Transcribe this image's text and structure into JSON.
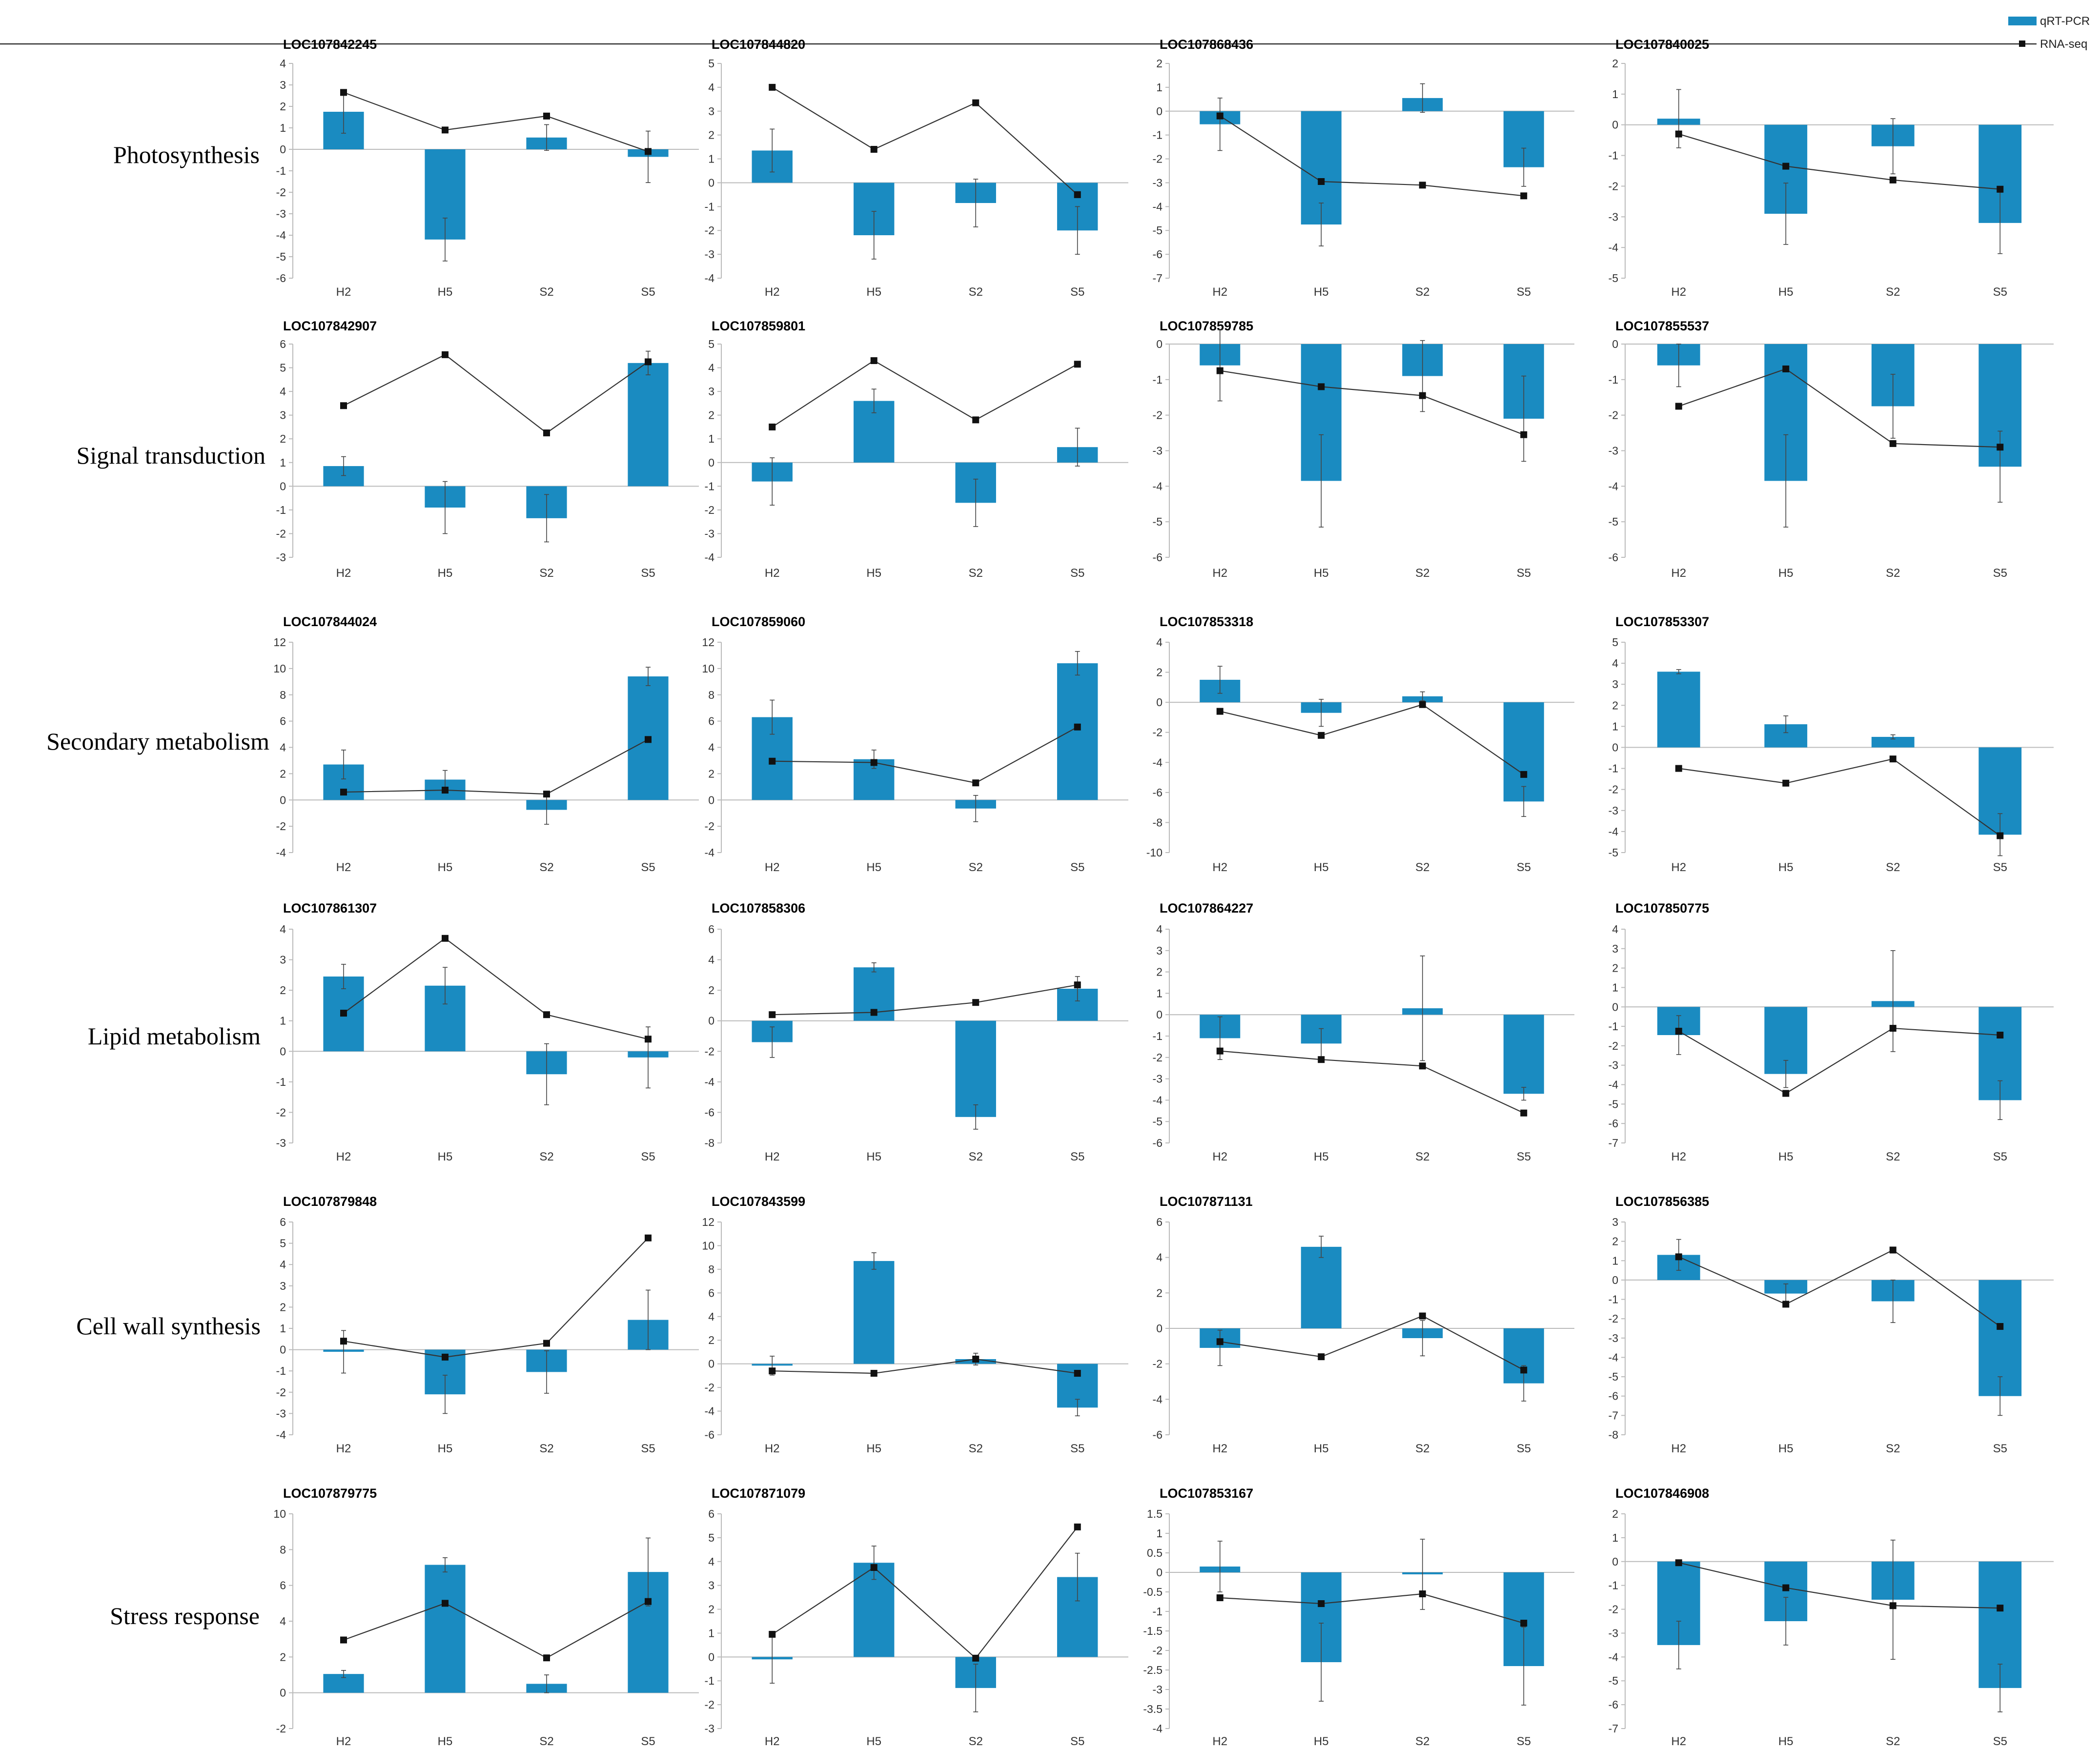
{
  "legend": {
    "bar_label": "qRT-PCR",
    "line_label": "RNA-seq"
  },
  "colors": {
    "bar": "#1A8BC1",
    "line": "#333333",
    "marker": "#111111",
    "axis": "#BBBBBB"
  },
  "row_labels": [
    "Photosynthesis",
    "Signal transduction",
    "Secondary metabolism",
    "Lipid metabolism",
    "Cell wall synthesis",
    "Stress response"
  ],
  "chart_data": [
    {
      "type": "bar",
      "title": "LOC107842245",
      "categories": [
        "H2",
        "H5",
        "S2",
        "S5"
      ],
      "ylim": [
        -6,
        4
      ],
      "yticks": [
        -6,
        -5,
        -4,
        -3,
        -2,
        -1,
        0,
        1,
        2,
        3,
        4
      ],
      "series": [
        {
          "name": "qRT-PCR",
          "values": [
            1.75,
            -4.2,
            0.55,
            -0.35
          ],
          "errors": [
            1.0,
            1.0,
            0.6,
            1.2
          ]
        },
        {
          "name": "RNA-seq",
          "type": "line",
          "values": [
            2.65,
            0.9,
            1.55,
            -0.1
          ]
        }
      ]
    },
    {
      "type": "bar",
      "title": "LOC107844820",
      "categories": [
        "H2",
        "H5",
        "S2",
        "S5"
      ],
      "ylim": [
        -4,
        5
      ],
      "yticks": [
        -4,
        -3,
        -2,
        -1,
        0,
        1,
        2,
        3,
        4,
        5
      ],
      "series": [
        {
          "name": "qRT-PCR",
          "values": [
            1.35,
            -2.2,
            -0.85,
            -2.0
          ],
          "errors": [
            0.9,
            1.0,
            1.0,
            1.0
          ]
        },
        {
          "name": "RNA-seq",
          "type": "line",
          "values": [
            4.0,
            1.4,
            3.35,
            -0.5
          ]
        }
      ]
    },
    {
      "type": "bar",
      "title": "LOC107868436",
      "categories": [
        "H2",
        "H5",
        "S2",
        "S5"
      ],
      "ylim": [
        -7,
        2
      ],
      "yticks": [
        -7,
        -6,
        -5,
        -4,
        -3,
        -2,
        -1,
        0,
        1,
        2
      ],
      "series": [
        {
          "name": "qRT-PCR",
          "values": [
            -0.55,
            -4.75,
            0.55,
            -2.35
          ],
          "errors": [
            1.1,
            0.9,
            0.6,
            0.8
          ]
        },
        {
          "name": "RNA-seq",
          "type": "line",
          "values": [
            -0.2,
            -2.95,
            -3.1,
            -3.55
          ]
        }
      ]
    },
    {
      "type": "bar",
      "title": "LOC107840025",
      "categories": [
        "H2",
        "H5",
        "S2",
        "S5"
      ],
      "ylim": [
        -5,
        2
      ],
      "yticks": [
        -5,
        -4,
        -3,
        -2,
        -1,
        0,
        1,
        2
      ],
      "series": [
        {
          "name": "qRT-PCR",
          "values": [
            0.2,
            -2.9,
            -0.7,
            -3.2
          ],
          "errors": [
            0.95,
            1.0,
            0.9,
            1.0
          ]
        },
        {
          "name": "RNA-seq",
          "type": "line",
          "values": [
            -0.3,
            -1.35,
            -1.8,
            -2.1
          ]
        }
      ]
    },
    {
      "type": "bar",
      "title": "LOC107842907",
      "categories": [
        "H2",
        "H5",
        "S2",
        "S5"
      ],
      "ylim": [
        -3,
        6
      ],
      "yticks": [
        -3,
        -2,
        -1,
        0,
        1,
        2,
        3,
        4,
        5,
        6
      ],
      "series": [
        {
          "name": "qRT-PCR",
          "values": [
            0.85,
            -0.9,
            -1.35,
            5.2
          ],
          "errors": [
            0.4,
            1.1,
            1.0,
            0.5
          ]
        },
        {
          "name": "RNA-seq",
          "type": "line",
          "values": [
            3.4,
            5.55,
            2.25,
            5.25
          ]
        }
      ]
    },
    {
      "type": "bar",
      "title": "LOC107859801",
      "categories": [
        "H2",
        "H5",
        "S2",
        "S5"
      ],
      "ylim": [
        -4,
        5
      ],
      "yticks": [
        -4,
        -3,
        -2,
        -1,
        0,
        1,
        2,
        3,
        4,
        5
      ],
      "series": [
        {
          "name": "qRT-PCR",
          "values": [
            -0.8,
            2.6,
            -1.7,
            0.65
          ],
          "errors": [
            1.0,
            0.5,
            1.0,
            0.8
          ]
        },
        {
          "name": "RNA-seq",
          "type": "line",
          "values": [
            1.5,
            4.3,
            1.8,
            4.15
          ]
        }
      ]
    },
    {
      "type": "bar",
      "title": "LOC107859785",
      "categories": [
        "H2",
        "H5",
        "S2",
        "S5"
      ],
      "ylim": [
        -6,
        0
      ],
      "yticks": [
        -6,
        -5,
        -4,
        -3,
        -2,
        -1,
        0
      ],
      "series": [
        {
          "name": "qRT-PCR",
          "values": [
            -0.6,
            -3.85,
            -0.9,
            -2.1
          ],
          "errors": [
            1.0,
            1.3,
            1.0,
            1.2
          ]
        },
        {
          "name": "RNA-seq",
          "type": "line",
          "values": [
            -0.75,
            -1.2,
            -1.45,
            -2.55
          ]
        }
      ]
    },
    {
      "type": "bar",
      "title": "LOC107855537",
      "categories": [
        "H2",
        "H5",
        "S2",
        "S5"
      ],
      "ylim": [
        -6,
        0
      ],
      "yticks": [
        -6,
        -5,
        -4,
        -3,
        -2,
        -1,
        0
      ],
      "series": [
        {
          "name": "qRT-PCR",
          "values": [
            -0.6,
            -3.85,
            -1.75,
            -3.45
          ],
          "errors": [
            0.6,
            1.3,
            0.9,
            1.0
          ]
        },
        {
          "name": "RNA-seq",
          "type": "line",
          "values": [
            -1.75,
            -0.7,
            -2.8,
            -2.9
          ]
        }
      ]
    },
    {
      "type": "bar",
      "title": "LOC107844024",
      "categories": [
        "H2",
        "H5",
        "S2",
        "S5"
      ],
      "ylim": [
        -4,
        12
      ],
      "yticks": [
        -4,
        -2,
        0,
        2,
        4,
        6,
        8,
        10,
        12
      ],
      "series": [
        {
          "name": "qRT-PCR",
          "values": [
            2.7,
            1.55,
            -0.75,
            9.4
          ],
          "errors": [
            1.1,
            0.7,
            1.1,
            0.7
          ]
        },
        {
          "name": "RNA-seq",
          "type": "line",
          "values": [
            0.6,
            0.75,
            0.45,
            4.6
          ]
        }
      ]
    },
    {
      "type": "bar",
      "title": "LOC107859060",
      "categories": [
        "H2",
        "H5",
        "S2",
        "S5"
      ],
      "ylim": [
        -4,
        12
      ],
      "yticks": [
        -4,
        -2,
        0,
        2,
        4,
        6,
        8,
        10,
        12
      ],
      "series": [
        {
          "name": "qRT-PCR",
          "values": [
            6.3,
            3.1,
            -0.65,
            10.4
          ],
          "errors": [
            1.3,
            0.7,
            1.0,
            0.9
          ]
        },
        {
          "name": "RNA-seq",
          "type": "line",
          "values": [
            2.95,
            2.85,
            1.3,
            5.55
          ]
        }
      ]
    },
    {
      "type": "bar",
      "title": "LOC107853318",
      "categories": [
        "H2",
        "H5",
        "S2",
        "S5"
      ],
      "ylim": [
        -10,
        4
      ],
      "yticks": [
        -10,
        -8,
        -6,
        -4,
        -2,
        0,
        2,
        4
      ],
      "series": [
        {
          "name": "qRT-PCR",
          "values": [
            1.5,
            -0.7,
            0.4,
            -6.6
          ],
          "errors": [
            0.9,
            0.9,
            0.3,
            1.0
          ]
        },
        {
          "name": "RNA-seq",
          "type": "line",
          "values": [
            -0.6,
            -2.2,
            -0.15,
            -4.8
          ]
        }
      ]
    },
    {
      "type": "bar",
      "title": "LOC107853307",
      "categories": [
        "H2",
        "H5",
        "S2",
        "S5"
      ],
      "ylim": [
        -5,
        5
      ],
      "yticks": [
        -5,
        -4,
        -3,
        -2,
        -1,
        0,
        1,
        2,
        3,
        4,
        5
      ],
      "series": [
        {
          "name": "qRT-PCR",
          "values": [
            3.6,
            1.1,
            0.5,
            -4.15
          ],
          "errors": [
            0.1,
            0.4,
            0.1,
            1.0
          ]
        },
        {
          "name": "RNA-seq",
          "type": "line",
          "values": [
            -1.0,
            -1.7,
            -0.55,
            -4.2
          ]
        }
      ]
    },
    {
      "type": "bar",
      "title": "LOC107861307",
      "categories": [
        "H2",
        "H5",
        "S2",
        "S5"
      ],
      "ylim": [
        -3,
        4
      ],
      "yticks": [
        -3,
        -2,
        -1,
        0,
        1,
        2,
        3,
        4
      ],
      "series": [
        {
          "name": "qRT-PCR",
          "values": [
            2.45,
            2.15,
            -0.75,
            -0.2
          ],
          "errors": [
            0.4,
            0.6,
            1.0,
            1.0
          ]
        },
        {
          "name": "RNA-seq",
          "type": "line",
          "values": [
            1.25,
            3.7,
            1.2,
            0.4
          ]
        }
      ]
    },
    {
      "type": "bar",
      "title": "LOC107858306",
      "categories": [
        "H2",
        "H5",
        "S2",
        "S5"
      ],
      "ylim": [
        -8,
        6
      ],
      "yticks": [
        -8,
        -6,
        -4,
        -2,
        0,
        2,
        4,
        6
      ],
      "series": [
        {
          "name": "qRT-PCR",
          "values": [
            -1.4,
            3.5,
            -6.3,
            2.1
          ],
          "errors": [
            1.0,
            0.3,
            0.8,
            0.8
          ]
        },
        {
          "name": "RNA-seq",
          "type": "line",
          "values": [
            0.4,
            0.55,
            1.2,
            2.35
          ]
        }
      ]
    },
    {
      "type": "bar",
      "title": "LOC107864227",
      "categories": [
        "H2",
        "H5",
        "S2",
        "S5"
      ],
      "ylim": [
        -6,
        4
      ],
      "yticks": [
        -6,
        -5,
        -4,
        -3,
        -2,
        -1,
        0,
        1,
        2,
        3,
        4
      ],
      "series": [
        {
          "name": "qRT-PCR",
          "values": [
            -1.1,
            -1.35,
            0.3,
            -3.7
          ],
          "errors": [
            1.0,
            0.7,
            2.45,
            0.3
          ]
        },
        {
          "name": "RNA-seq",
          "type": "line",
          "values": [
            -1.7,
            -2.1,
            -2.4,
            -4.6
          ]
        }
      ]
    },
    {
      "type": "bar",
      "title": "LOC107850775",
      "categories": [
        "H2",
        "H5",
        "S2",
        "S5"
      ],
      "ylim": [
        -7,
        4
      ],
      "yticks": [
        -7,
        -6,
        -5,
        -4,
        -3,
        -2,
        -1,
        0,
        1,
        2,
        3,
        4
      ],
      "series": [
        {
          "name": "qRT-PCR",
          "values": [
            -1.45,
            -3.45,
            0.3,
            -4.8
          ],
          "errors": [
            1.0,
            0.7,
            2.6,
            1.0
          ]
        },
        {
          "name": "RNA-seq",
          "type": "line",
          "values": [
            -1.25,
            -4.45,
            -1.1,
            -1.45
          ]
        }
      ]
    },
    {
      "type": "bar",
      "title": "LOC107879848",
      "categories": [
        "H2",
        "H5",
        "S2",
        "S5"
      ],
      "ylim": [
        -4,
        6
      ],
      "yticks": [
        -4,
        -3,
        -2,
        -1,
        0,
        1,
        2,
        3,
        4,
        5,
        6
      ],
      "series": [
        {
          "name": "qRT-PCR",
          "values": [
            -0.1,
            -2.1,
            -1.05,
            1.4
          ],
          "errors": [
            1.0,
            0.9,
            1.0,
            1.4
          ]
        },
        {
          "name": "RNA-seq",
          "type": "line",
          "values": [
            0.4,
            -0.35,
            0.3,
            5.25
          ]
        }
      ]
    },
    {
      "type": "bar",
      "title": "LOC107843599",
      "categories": [
        "H2",
        "H5",
        "S2",
        "S5"
      ],
      "ylim": [
        -6,
        12
      ],
      "yticks": [
        -6,
        -4,
        -2,
        0,
        2,
        4,
        6,
        8,
        10,
        12
      ],
      "series": [
        {
          "name": "qRT-PCR",
          "values": [
            -0.15,
            8.7,
            0.4,
            -3.7
          ],
          "errors": [
            0.8,
            0.7,
            0.5,
            0.7
          ]
        },
        {
          "name": "RNA-seq",
          "type": "line",
          "values": [
            -0.6,
            -0.8,
            0.4,
            -0.8
          ]
        }
      ]
    },
    {
      "type": "bar",
      "title": "LOC107871131",
      "categories": [
        "H2",
        "H5",
        "S2",
        "S5"
      ],
      "ylim": [
        -6,
        6
      ],
      "yticks": [
        -6,
        -4,
        -2,
        0,
        2,
        4,
        6
      ],
      "series": [
        {
          "name": "qRT-PCR",
          "values": [
            -1.1,
            4.6,
            -0.55,
            -3.1
          ],
          "errors": [
            1.0,
            0.6,
            1.0,
            1.0
          ]
        },
        {
          "name": "RNA-seq",
          "type": "line",
          "values": [
            -0.75,
            -1.6,
            0.7,
            -2.35
          ]
        }
      ]
    },
    {
      "type": "bar",
      "title": "LOC107856385",
      "categories": [
        "H2",
        "H5",
        "S2",
        "S5"
      ],
      "ylim": [
        -8,
        3
      ],
      "yticks": [
        -8,
        -7,
        -6,
        -5,
        -4,
        -3,
        -2,
        -1,
        0,
        1,
        2,
        3
      ],
      "series": [
        {
          "name": "qRT-PCR",
          "values": [
            1.3,
            -0.7,
            -1.1,
            -6.0
          ],
          "errors": [
            0.8,
            0.5,
            1.1,
            1.0
          ]
        },
        {
          "name": "RNA-seq",
          "type": "line",
          "values": [
            1.2,
            -1.25,
            1.55,
            -2.4
          ]
        }
      ]
    },
    {
      "type": "bar",
      "title": "LOC107879775",
      "categories": [
        "H2",
        "H5",
        "S2",
        "S5"
      ],
      "ylim": [
        -2,
        10
      ],
      "yticks": [
        -2,
        0,
        2,
        4,
        6,
        8,
        10
      ],
      "series": [
        {
          "name": "qRT-PCR",
          "values": [
            1.05,
            7.15,
            0.5,
            6.75
          ],
          "errors": [
            0.2,
            0.4,
            0.5,
            1.9
          ]
        },
        {
          "name": "RNA-seq",
          "type": "line",
          "values": [
            2.95,
            5.0,
            1.95,
            5.1
          ]
        }
      ]
    },
    {
      "type": "bar",
      "title": "LOC107871079",
      "categories": [
        "H2",
        "H5",
        "S2",
        "S5"
      ],
      "ylim": [
        -3,
        6
      ],
      "yticks": [
        -3,
        -2,
        -1,
        0,
        1,
        2,
        3,
        4,
        5,
        6
      ],
      "series": [
        {
          "name": "qRT-PCR",
          "values": [
            -0.1,
            3.95,
            -1.3,
            3.35
          ],
          "errors": [
            1.0,
            0.7,
            1.0,
            1.0
          ]
        },
        {
          "name": "RNA-seq",
          "type": "line",
          "values": [
            0.95,
            3.75,
            -0.05,
            5.45
          ]
        }
      ]
    },
    {
      "type": "bar",
      "title": "LOC107853167",
      "categories": [
        "H2",
        "H5",
        "S2",
        "S5"
      ],
      "ylim": [
        -4,
        1.5
      ],
      "yticks": [
        -4,
        -3.5,
        -3,
        -2.5,
        -2,
        -1.5,
        -1,
        -0.5,
        0,
        0.5,
        1,
        1.5
      ],
      "yticklabels": [
        "-4",
        "-3.5",
        "-3",
        "-2.5",
        "-2",
        "-1.5",
        "-1",
        "-0.5",
        "0",
        "0.5",
        "1",
        "1.5"
      ],
      "series": [
        {
          "name": "qRT-PCR",
          "values": [
            0.15,
            -2.3,
            -0.05,
            -2.4
          ],
          "errors": [
            0.65,
            1.0,
            0.9,
            1.0
          ]
        },
        {
          "name": "RNA-seq",
          "type": "line",
          "values": [
            -0.65,
            -0.8,
            -0.55,
            -1.3
          ]
        }
      ]
    },
    {
      "type": "bar",
      "title": "LOC107846908",
      "categories": [
        "H2",
        "H5",
        "S2",
        "S5"
      ],
      "ylim": [
        -7,
        2
      ],
      "yticks": [
        -7,
        -6,
        -5,
        -4,
        -3,
        -2,
        -1,
        0,
        1,
        2
      ],
      "series": [
        {
          "name": "qRT-PCR",
          "values": [
            -3.5,
            -2.5,
            -1.6,
            -5.3
          ],
          "errors": [
            1.0,
            1.0,
            2.5,
            1.0
          ]
        },
        {
          "name": "RNA-seq",
          "type": "line",
          "values": [
            -0.05,
            -1.1,
            -1.85,
            -1.95
          ]
        }
      ]
    }
  ]
}
